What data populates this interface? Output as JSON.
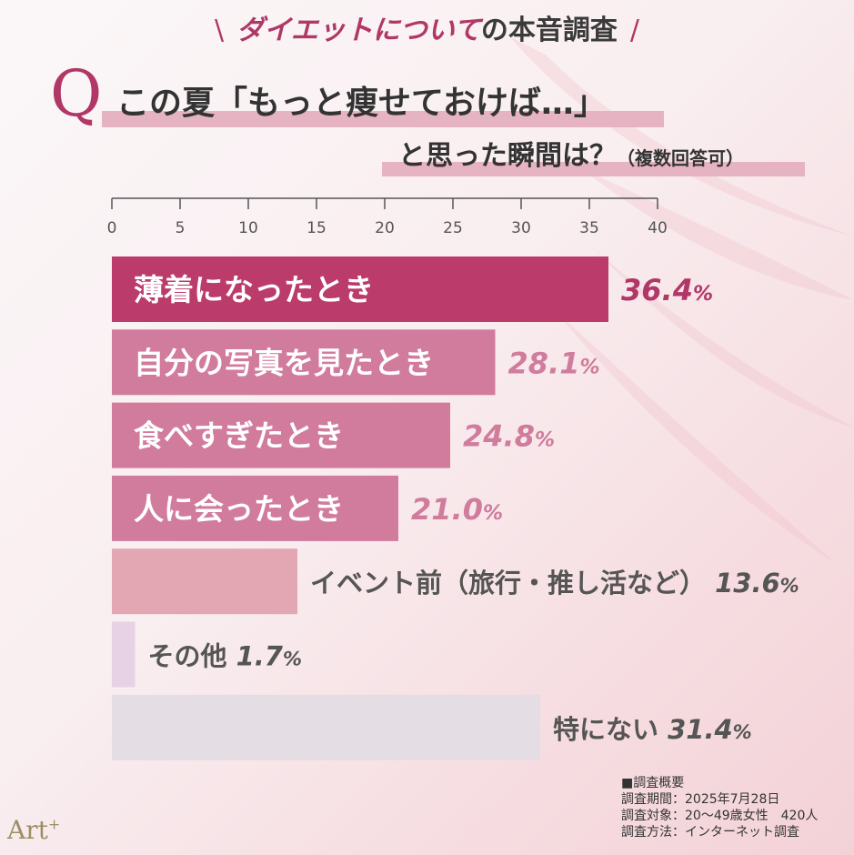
{
  "header": {
    "slash_left": "\\",
    "title_pink": "ダイエットについて",
    "title_dark": "の本音調査",
    "slash_right": "/"
  },
  "question": {
    "mark": "Q",
    "line1_pre": "この夏",
    "line1_quote": "「もっと痩せておけば…」",
    "line2_main": "と思った瞬間は？",
    "line2_note": "（複数回答可）"
  },
  "chart_data": {
    "type": "bar",
    "orientation": "horizontal",
    "xlim": [
      0,
      40
    ],
    "xticks": [
      "0",
      "5",
      "10",
      "15",
      "20",
      "25",
      "30",
      "35",
      "40"
    ],
    "unit": "%",
    "grid": false,
    "bars": [
      {
        "label": "薄着になったとき",
        "value": 36.4,
        "value_label": "36.4",
        "color": "#bb3b6b",
        "text_inside": true
      },
      {
        "label": "自分の写真を見たとき",
        "value": 28.1,
        "value_label": "28.1",
        "color": "#d17c9d",
        "text_inside": true
      },
      {
        "label": "食べすぎたとき",
        "value": 24.8,
        "value_label": "24.8",
        "color": "#d17c9d",
        "text_inside": true
      },
      {
        "label": "人に会ったとき",
        "value": 21.0,
        "value_label": "21.0",
        "color": "#d17c9d",
        "text_inside": true
      },
      {
        "label": "イベント前（旅行・推し活など）",
        "value": 13.6,
        "value_label": "13.6",
        "color": "#e2a7b3",
        "text_inside": false
      },
      {
        "label": "その他",
        "value": 1.7,
        "value_label": "1.7",
        "color": "#e6d2e4",
        "text_inside": false
      },
      {
        "label": "特にない",
        "value": 31.4,
        "value_label": "31.4",
        "color": "#e4dde4",
        "text_inside": false
      }
    ]
  },
  "survey": {
    "heading": "■調査概要",
    "period": "調査期間：2025年7月28日",
    "target": "調査対象：20〜49歳女性　420人",
    "method": "調査方法：インターネット調査"
  },
  "brand": {
    "name": "Art",
    "sup": "+"
  }
}
